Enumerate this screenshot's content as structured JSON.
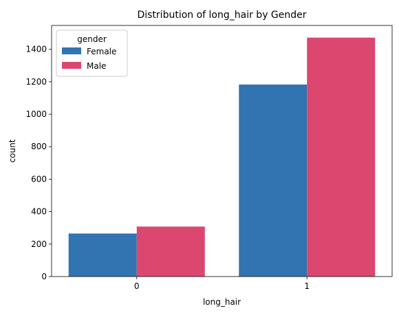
{
  "chart_data": {
    "type": "bar",
    "title": "Distribution of long_hair by Gender",
    "xlabel": "long_hair",
    "ylabel": "count",
    "categories": [
      "0",
      "1"
    ],
    "series": [
      {
        "name": "Female",
        "color": "#3274b2",
        "values": [
          265,
          1183
        ]
      },
      {
        "name": "Male",
        "color": "#dc4770",
        "values": [
          308,
          1472
        ]
      }
    ],
    "ylim": [
      0,
      1547
    ],
    "yticks": [
      0,
      200,
      400,
      600,
      800,
      1000,
      1200,
      1400
    ],
    "ytick_labels": [
      "0",
      "200",
      "400",
      "600",
      "800",
      "1000",
      "1200",
      "1400"
    ],
    "legend": {
      "title": "gender",
      "placement": "top-left"
    },
    "grid": false
  }
}
